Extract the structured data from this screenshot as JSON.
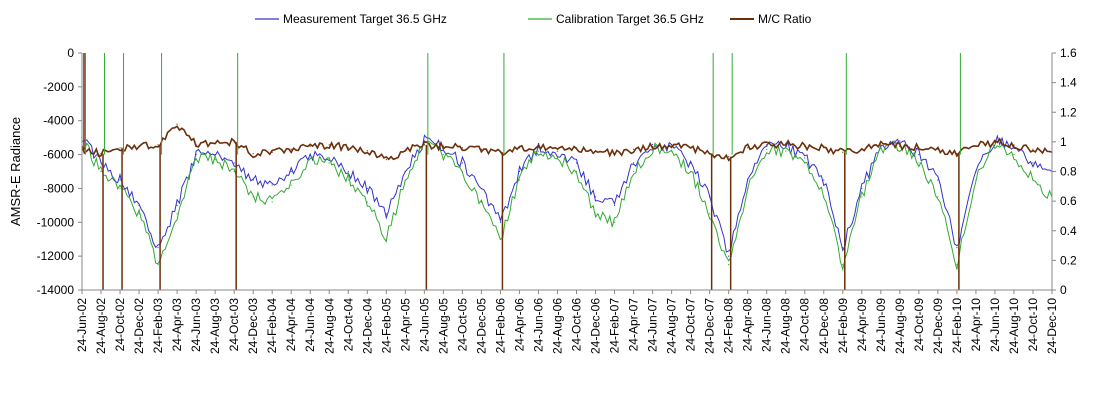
{
  "chart_data": {
    "type": "line",
    "title": "",
    "ylabel": "AMSR-E Radiance",
    "y2label": "",
    "ylim": [
      -14000,
      0
    ],
    "y_ticks": [
      0,
      -2000,
      -4000,
      -6000,
      -8000,
      -10000,
      -12000,
      -14000
    ],
    "y_tick_labels": [
      "0",
      "-2000",
      "-4000",
      "-6000",
      "-8000",
      "-10000",
      "-12000",
      "-14000"
    ],
    "y2lim": [
      0,
      1.6
    ],
    "y2_ticks": [
      0,
      0.2,
      0.4,
      0.6,
      0.8,
      1,
      1.2,
      1.4,
      1.6
    ],
    "y2_tick_labels": [
      "0",
      "0.2",
      "0.4",
      "0.6",
      "0.8",
      "1",
      "1.2",
      "1.4",
      "1.6"
    ],
    "legend_position": "top",
    "grid": false,
    "x_tick_labels": [
      "24-Jun-02",
      "24-Aug-02",
      "24-Oct-02",
      "24-Dec-02",
      "24-Feb-03",
      "24-Apr-03",
      "24-Jun-03",
      "24-Aug-03",
      "24-Oct-03",
      "24-Dec-03",
      "24-Feb-04",
      "24-Apr-04",
      "24-Jun-04",
      "24-Aug-04",
      "24-Oct-04",
      "24-Dec-04",
      "24-Feb-05",
      "24-Apr-05",
      "24-Jun-05",
      "24-Aug-05",
      "24-Oct-05",
      "24-Dec-05",
      "24-Feb-06",
      "24-Apr-06",
      "24-Jun-06",
      "24-Aug-06",
      "24-Oct-06",
      "24-Dec-06",
      "24-Feb-07",
      "24-Apr-07",
      "24-Jun-07",
      "24-Aug-07",
      "24-Oct-07",
      "24-Dec-07",
      "24-Feb-08",
      "24-Apr-08",
      "24-Jun-08",
      "24-Aug-08",
      "24-Oct-08",
      "24-Dec-08",
      "24-Feb-09",
      "24-Apr-09",
      "24-Jun-09",
      "24-Aug-09",
      "24-Oct-09",
      "24-Dec-09",
      "24-Feb-10",
      "24-Apr-10",
      "24-Jun-10",
      "24-Aug-10",
      "24-Oct-10",
      "24-Dec-10"
    ],
    "x": [
      "24-Jun-02",
      "24-Aug-02",
      "24-Oct-02",
      "24-Dec-02",
      "24-Feb-03",
      "24-Apr-03",
      "24-Jun-03",
      "24-Aug-03",
      "24-Oct-03",
      "24-Dec-03",
      "24-Feb-04",
      "24-Apr-04",
      "24-Jun-04",
      "24-Aug-04",
      "24-Oct-04",
      "24-Dec-04",
      "24-Feb-05",
      "24-Apr-05",
      "24-Jun-05",
      "24-Aug-05",
      "24-Oct-05",
      "24-Dec-05",
      "24-Feb-06",
      "24-Apr-06",
      "24-Jun-06",
      "24-Aug-06",
      "24-Oct-06",
      "24-Dec-06",
      "24-Feb-07",
      "24-Apr-07",
      "24-Jun-07",
      "24-Aug-07",
      "24-Oct-07",
      "24-Dec-07",
      "24-Feb-08",
      "24-Apr-08",
      "24-Jun-08",
      "24-Aug-08",
      "24-Oct-08",
      "24-Dec-08",
      "24-Feb-09",
      "24-Apr-09",
      "24-Jun-09",
      "24-Aug-09",
      "24-Oct-09",
      "24-Dec-09",
      "24-Feb-10",
      "24-Apr-10",
      "24-Jun-10",
      "24-Aug-10",
      "24-Oct-10",
      "24-Dec-10"
    ],
    "series": [
      {
        "name": "Measurement Target 36.5 GHz",
        "axis": "left",
        "color": "#3333cc",
        "values": [
          -5000,
          -6500,
          -7500,
          -9000,
          -11500,
          -9000,
          -6000,
          -6000,
          -6500,
          -7500,
          -7800,
          -7000,
          -6000,
          -6200,
          -7000,
          -8000,
          -9500,
          -7000,
          -5200,
          -5500,
          -6500,
          -8000,
          -10000,
          -7000,
          -5600,
          -5800,
          -6500,
          -8500,
          -9000,
          -6500,
          -5400,
          -5600,
          -6500,
          -8500,
          -12000,
          -7500,
          -5500,
          -5500,
          -6200,
          -7500,
          -11500,
          -8000,
          -5500,
          -5200,
          -6000,
          -7500,
          -11500,
          -7000,
          -5200,
          -5500,
          -6500,
          -7000
        ]
      },
      {
        "name": "Calibration Target 36.5 GHz",
        "axis": "left",
        "color": "#33aa33",
        "values": [
          -5200,
          -7000,
          -8000,
          -9500,
          -12500,
          -9500,
          -6300,
          -6300,
          -7000,
          -8500,
          -8800,
          -7800,
          -6200,
          -6500,
          -7500,
          -8800,
          -11000,
          -7500,
          -5400,
          -6000,
          -7000,
          -8800,
          -11000,
          -7500,
          -5800,
          -6200,
          -7000,
          -9500,
          -10000,
          -7000,
          -5600,
          -5800,
          -7000,
          -9500,
          -12500,
          -8000,
          -5700,
          -5800,
          -6500,
          -8500,
          -12500,
          -8500,
          -5600,
          -5500,
          -6500,
          -8500,
          -12500,
          -7500,
          -5400,
          -6000,
          -7500,
          -8500
        ]
      },
      {
        "name": "M/C Ratio",
        "axis": "right",
        "color": "#6b2f0a",
        "values": [
          0.95,
          0.92,
          0.96,
          0.97,
          0.98,
          1.12,
          0.98,
          0.99,
          1.0,
          0.92,
          0.93,
          0.95,
          0.97,
          0.98,
          0.96,
          0.94,
          0.88,
          0.94,
          0.98,
          0.97,
          0.96,
          0.95,
          0.93,
          0.96,
          0.97,
          0.95,
          0.96,
          0.94,
          0.92,
          0.95,
          0.97,
          0.98,
          0.96,
          0.92,
          0.9,
          0.96,
          0.98,
          0.99,
          0.97,
          0.96,
          0.93,
          0.95,
          0.98,
          0.97,
          0.96,
          0.95,
          0.92,
          0.97,
          1.0,
          0.98,
          0.95,
          0.93
        ]
      }
    ],
    "spikes": [
      {
        "x": "24-Jun-02",
        "series": "M/C Ratio",
        "value": 1.6
      },
      {
        "x": "24-Aug-02",
        "series": "M/C Ratio",
        "value": 0
      },
      {
        "x": "24-Oct-02",
        "series": "M/C Ratio",
        "value": 0
      },
      {
        "x": "24-Feb-03",
        "series": "M/C Ratio",
        "value": 0
      },
      {
        "x": "24-Oct-03",
        "series": "M/C Ratio",
        "value": 0
      },
      {
        "x": "24-Jun-05",
        "series": "M/C Ratio",
        "value": 0
      },
      {
        "x": "24-Feb-06",
        "series": "M/C Ratio",
        "value": 0
      },
      {
        "x": "24-Dec-07",
        "series": "M/C Ratio",
        "value": 0
      },
      {
        "x": "24-Feb-08",
        "series": "M/C Ratio",
        "value": 0
      },
      {
        "x": "24-Feb-09",
        "series": "M/C Ratio",
        "value": 0
      },
      {
        "x": "24-Feb-10",
        "series": "M/C Ratio",
        "value": 0
      }
    ]
  }
}
